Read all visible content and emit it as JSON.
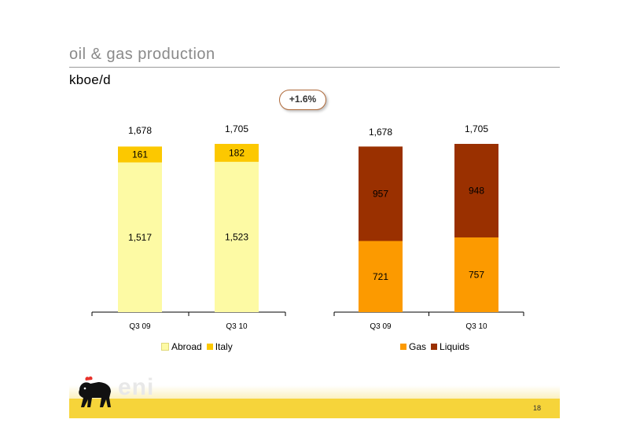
{
  "title": "oil & gas production",
  "unit": "kboe/d",
  "badge": "+1.6%",
  "colors": {
    "abroad": "#fdfaa4",
    "italy": "#fcc800",
    "gas": "#fc9a00",
    "liquids": "#9a3000"
  },
  "chart_data": [
    {
      "type": "bar",
      "stacked": true,
      "categories": [
        "Q3 09",
        "Q3 10"
      ],
      "series": [
        {
          "name": "Abroad",
          "values": [
            1517,
            1523
          ],
          "color": "#fdfaa4"
        },
        {
          "name": "Italy",
          "values": [
            161,
            182
          ],
          "color": "#fcc800"
        }
      ],
      "totals": [
        "1,678",
        "1,705"
      ],
      "segment_labels": [
        [
          "1,517",
          "161"
        ],
        [
          "1,523",
          "182"
        ]
      ],
      "legend": "bottom",
      "grid": false
    },
    {
      "type": "bar",
      "stacked": true,
      "categories": [
        "Q3 09",
        "Q3 10"
      ],
      "series": [
        {
          "name": "Gas",
          "values": [
            721,
            757
          ],
          "color": "#fc9a00"
        },
        {
          "name": "Liquids",
          "values": [
            957,
            948
          ],
          "color": "#9a3000"
        }
      ],
      "totals": [
        "1,678",
        "1,705"
      ],
      "segment_labels": [
        [
          "721",
          "957"
        ],
        [
          "757",
          "948"
        ]
      ],
      "legend": "bottom",
      "grid": false
    }
  ],
  "footer": {
    "logo_text": "eni",
    "page_number": "18"
  }
}
